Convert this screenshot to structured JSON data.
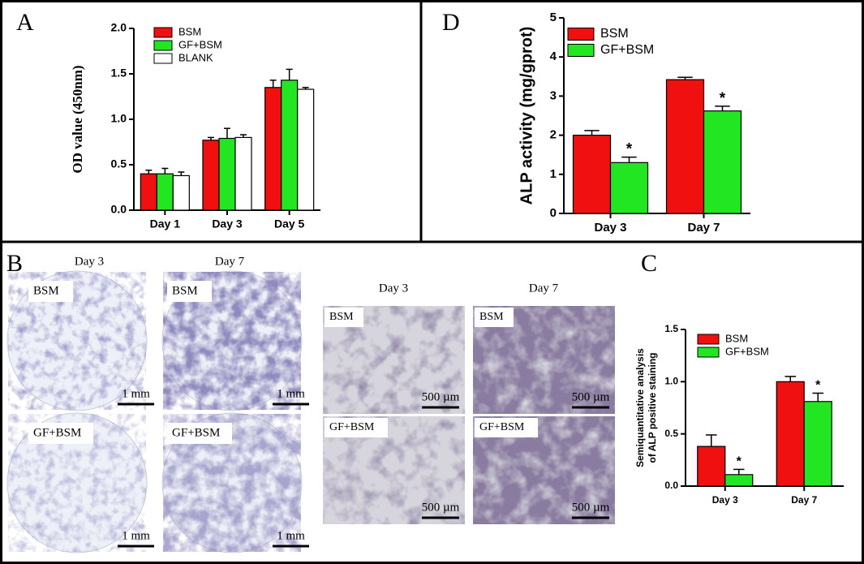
{
  "chart_data": [
    {
      "type": "bar",
      "panel": "A",
      "ylabel": "OD value (450nm)",
      "categories": [
        "Day 1",
        "Day 3",
        "Day 5"
      ],
      "series": [
        {
          "name": "BSM",
          "color": "#f01010",
          "values": [
            0.4,
            0.77,
            1.35
          ],
          "errors": [
            0.04,
            0.03,
            0.08
          ]
        },
        {
          "name": "GF+BSM",
          "color": "#22e622",
          "values": [
            0.4,
            0.79,
            1.43
          ],
          "errors": [
            0.06,
            0.11,
            0.12
          ]
        },
        {
          "name": "BLANK",
          "color": "#ffffff",
          "values": [
            0.38,
            0.8,
            1.33
          ],
          "errors": [
            0.04,
            0.03,
            0.02
          ]
        }
      ],
      "ylim": [
        0,
        2
      ],
      "yticks": [
        {
          "value": 0,
          "label": "0.0"
        },
        0.5,
        {
          "value": 1,
          "label": "1.0"
        },
        1.5,
        {
          "value": 2,
          "label": "2.0"
        }
      ]
    },
    {
      "type": "bar",
      "panel": "D",
      "ylabel": "ALP activity (mg/gprot)",
      "categories": [
        "Day 3",
        "Day 7"
      ],
      "series": [
        {
          "name": "BSM",
          "color": "#f01010",
          "values": [
            2.0,
            3.42
          ],
          "errors": [
            0.12,
            0.06
          ]
        },
        {
          "name": "GF+BSM",
          "color": "#22e622",
          "values": [
            1.3,
            2.62
          ],
          "errors": [
            0.14,
            0.12
          ],
          "significance": [
            "*",
            "*"
          ]
        }
      ],
      "ylim": [
        0,
        5
      ],
      "yticks": [
        0,
        1,
        2,
        3,
        4,
        5
      ]
    },
    {
      "type": "bar",
      "panel": "C",
      "ylabel": [
        "Semiquantitative analysis",
        "of ALP positive staining"
      ],
      "categories": [
        "Day 3",
        "Day 7"
      ],
      "series": [
        {
          "name": "BSM",
          "color": "#f01010",
          "values": [
            0.38,
            1.0
          ],
          "errors": [
            0.11,
            0.05
          ]
        },
        {
          "name": "GF+BSM",
          "color": "#22e622",
          "values": [
            0.11,
            0.81
          ],
          "errors": [
            0.05,
            0.08
          ],
          "significance": [
            "*",
            "*"
          ]
        }
      ],
      "ylim": [
        0,
        1.5
      ],
      "yticks": [
        {
          "value": 0,
          "label": "0.0"
        },
        0.5,
        {
          "value": 1,
          "label": "1.0"
        },
        1.5
      ]
    }
  ],
  "images": {
    "panel": "B",
    "gross": {
      "columns": [
        "Day 3",
        "Day 7"
      ],
      "rows": [
        "BSM",
        "GF+BSM"
      ],
      "scale_bar": "1 mm"
    },
    "micro": {
      "columns": [
        "Day 3",
        "Day 7"
      ],
      "rows": [
        "BSM",
        "GF+BSM"
      ],
      "scale_bar": "500 µm"
    }
  }
}
